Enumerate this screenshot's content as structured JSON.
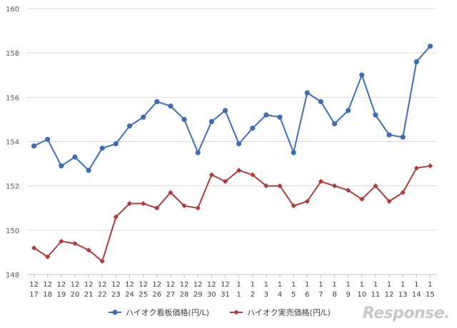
{
  "chart_data": {
    "type": "line",
    "x": [
      [
        "12",
        "17"
      ],
      [
        "12",
        "18"
      ],
      [
        "12",
        "19"
      ],
      [
        "12",
        "20"
      ],
      [
        "12",
        "21"
      ],
      [
        "12",
        "22"
      ],
      [
        "12",
        "23"
      ],
      [
        "12",
        "24"
      ],
      [
        "12",
        "25"
      ],
      [
        "12",
        "26"
      ],
      [
        "12",
        "27"
      ],
      [
        "12",
        "28"
      ],
      [
        "12",
        "29"
      ],
      [
        "12",
        "30"
      ],
      [
        "12",
        "31"
      ],
      [
        "1",
        "1"
      ],
      [
        "1",
        "2"
      ],
      [
        "1",
        "3"
      ],
      [
        "1",
        "4"
      ],
      [
        "1",
        "5"
      ],
      [
        "1",
        "6"
      ],
      [
        "1",
        "7"
      ],
      [
        "1",
        "8"
      ],
      [
        "1",
        "9"
      ],
      [
        "1",
        "10"
      ],
      [
        "1",
        "11"
      ],
      [
        "1",
        "12"
      ],
      [
        "1",
        "13"
      ],
      [
        "1",
        "14"
      ],
      [
        "1",
        "15"
      ]
    ],
    "series": [
      {
        "name": "ハイオク看板価格(円/L)",
        "color": "#3f6db3",
        "marker": "circle",
        "values": [
          153.8,
          154.1,
          152.9,
          153.3,
          152.7,
          153.7,
          153.9,
          154.7,
          155.1,
          155.8,
          155.6,
          155.0,
          153.5,
          154.9,
          155.4,
          153.9,
          154.6,
          155.2,
          155.1,
          153.5,
          156.2,
          155.8,
          154.8,
          155.4,
          157.0,
          155.2,
          154.3,
          154.2,
          157.6,
          158.3
        ]
      },
      {
        "name": "ハイオク実売価格(円/L)",
        "color": "#b03a3a",
        "marker": "diamond",
        "values": [
          149.2,
          148.8,
          149.5,
          149.4,
          149.1,
          148.6,
          150.6,
          151.2,
          151.2,
          151.0,
          151.7,
          151.1,
          151.0,
          152.5,
          152.2,
          152.7,
          152.5,
          152.0,
          152.0,
          151.1,
          151.3,
          152.2,
          152.0,
          151.8,
          151.4,
          152.0,
          151.3,
          151.7,
          152.8,
          152.9
        ]
      }
    ],
    "yticks": [
      "148",
      "150",
      "152",
      "154",
      "156",
      "158",
      "160"
    ],
    "ylim": [
      148,
      160
    ],
    "grid": true,
    "legend_position": "bottom-center"
  },
  "watermark": "Response."
}
